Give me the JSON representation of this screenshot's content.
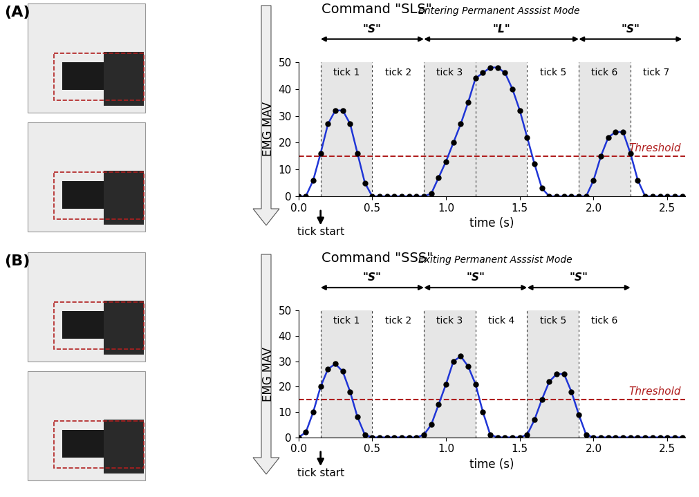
{
  "chart_data": [
    {
      "type": "line",
      "panel_label": "(A)",
      "title": "Command \"SLS\"",
      "subtitle": "Entering Permanent Asssist Mode",
      "x_label": "time (s)",
      "y_label": "EMG MAV",
      "color": "#1f35d6",
      "marker": "o",
      "x": [
        0.0,
        0.05,
        0.1,
        0.15,
        0.2,
        0.25,
        0.3,
        0.35,
        0.4,
        0.45,
        0.5,
        0.55,
        0.6,
        0.65,
        0.7,
        0.75,
        0.8,
        0.85,
        0.9,
        0.95,
        1.0,
        1.05,
        1.1,
        1.15,
        1.2,
        1.25,
        1.3,
        1.35,
        1.4,
        1.45,
        1.5,
        1.55,
        1.6,
        1.65,
        1.7,
        1.75,
        1.8,
        1.85,
        1.9,
        1.95,
        2.0,
        2.05,
        2.1,
        2.15,
        2.2,
        2.25,
        2.3,
        2.35,
        2.4,
        2.45,
        2.5,
        2.55,
        2.6
      ],
      "values": [
        0,
        0,
        6,
        16,
        27,
        32,
        32,
        27,
        16,
        5,
        0,
        0,
        0,
        0,
        0,
        0,
        0,
        0,
        1,
        7,
        13,
        20,
        27,
        35,
        44,
        46,
        48,
        48,
        46,
        40,
        32,
        22,
        12,
        3,
        0,
        0,
        0,
        0,
        0,
        0,
        6,
        15,
        22,
        24,
        24,
        16,
        6,
        0,
        0,
        0,
        0,
        0,
        0
      ],
      "xlim": [
        0,
        2.62
      ],
      "xticks": [
        {
          "value": 0,
          "label": "0.0"
        },
        {
          "value": 0.5,
          "label": "0.5"
        },
        {
          "value": 1,
          "label": "1.0"
        },
        {
          "value": 1.5,
          "label": "1.5"
        },
        {
          "value": 2,
          "label": "2.0"
        },
        {
          "value": 2.5,
          "label": "2.5"
        }
      ],
      "ylim": [
        0,
        50
      ],
      "yticks": [
        0,
        10,
        20,
        30,
        40,
        50
      ],
      "threshold": {
        "value": 15,
        "label": "Threshold",
        "color": "#b01e1e"
      },
      "shaded_spans": [
        [
          0.15,
          0.5
        ],
        [
          0.85,
          1.55
        ],
        [
          1.9,
          2.25
        ]
      ],
      "tick_regions": [
        {
          "start": 0.15,
          "end": 0.5,
          "label": "tick 1"
        },
        {
          "start": 0.5,
          "end": 0.85,
          "label": "tick 2"
        },
        {
          "start": 0.85,
          "end": 1.2,
          "label": "tick 3"
        },
        {
          "start": 1.2,
          "end": 1.55,
          "label": null
        },
        {
          "start": 1.55,
          "end": 1.9,
          "label": "tick 5"
        },
        {
          "start": 1.9,
          "end": 2.25,
          "label": "tick 6"
        },
        {
          "start": 2.25,
          "end": 2.6,
          "label": "tick 7"
        }
      ],
      "segments": [
        {
          "start": 0.15,
          "end": 0.85,
          "label": "\"S\""
        },
        {
          "start": 0.85,
          "end": 1.9,
          "label": "\"L\""
        },
        {
          "start": 1.9,
          "end": 2.6,
          "label": "\"S\""
        }
      ],
      "annotations": [
        {
          "x": 0.15,
          "text": "tick start"
        }
      ]
    },
    {
      "type": "line",
      "panel_label": "(B)",
      "title": "Command \"SSS\"",
      "subtitle": "Exiting Permanent Asssist Mode",
      "x_label": "time (s)",
      "y_label": "EMG MAV",
      "color": "#1f35d6",
      "marker": "o",
      "x": [
        0.0,
        0.05,
        0.1,
        0.15,
        0.2,
        0.25,
        0.3,
        0.35,
        0.4,
        0.45,
        0.5,
        0.55,
        0.6,
        0.65,
        0.7,
        0.75,
        0.8,
        0.85,
        0.9,
        0.95,
        1.0,
        1.05,
        1.1,
        1.15,
        1.2,
        1.25,
        1.3,
        1.35,
        1.4,
        1.45,
        1.5,
        1.55,
        1.6,
        1.65,
        1.7,
        1.75,
        1.8,
        1.85,
        1.9,
        1.95,
        2.0,
        2.05,
        2.1,
        2.15,
        2.2,
        2.25,
        2.3,
        2.35,
        2.4,
        2.45,
        2.5,
        2.55,
        2.6
      ],
      "values": [
        0,
        2,
        10,
        20,
        27,
        29,
        26,
        18,
        8,
        1,
        0,
        0,
        0,
        0,
        0,
        0,
        0,
        1,
        5,
        13,
        21,
        30,
        32,
        28,
        21,
        10,
        1,
        0,
        0,
        0,
        0,
        1,
        7,
        15,
        22,
        25,
        25,
        18,
        9,
        1,
        0,
        0,
        0,
        0,
        0,
        0,
        0,
        0,
        0,
        0,
        0,
        0,
        0
      ],
      "xlim": [
        0,
        2.62
      ],
      "xticks": [
        {
          "value": 0,
          "label": "0.0"
        },
        {
          "value": 0.5,
          "label": "0.5"
        },
        {
          "value": 1,
          "label": "1.0"
        },
        {
          "value": 1.5,
          "label": "1.5"
        },
        {
          "value": 2,
          "label": "2.0"
        },
        {
          "value": 2.5,
          "label": "2.5"
        }
      ],
      "ylim": [
        0,
        50
      ],
      "yticks": [
        0,
        10,
        20,
        30,
        40,
        50
      ],
      "threshold": {
        "value": 15,
        "label": "Threshold",
        "color": "#b01e1e"
      },
      "shaded_spans": [
        [
          0.15,
          0.5
        ],
        [
          0.85,
          1.2
        ],
        [
          1.55,
          1.9
        ]
      ],
      "tick_regions": [
        {
          "start": 0.15,
          "end": 0.5,
          "label": "tick 1"
        },
        {
          "start": 0.5,
          "end": 0.85,
          "label": "tick 2"
        },
        {
          "start": 0.85,
          "end": 1.2,
          "label": "tick 3"
        },
        {
          "start": 1.2,
          "end": 1.55,
          "label": "tick 4"
        },
        {
          "start": 1.55,
          "end": 1.9,
          "label": "tick 5"
        },
        {
          "start": 1.9,
          "end": 2.25,
          "label": "tick 6"
        }
      ],
      "segments": [
        {
          "start": 0.15,
          "end": 0.85,
          "label": "\"S\""
        },
        {
          "start": 0.85,
          "end": 1.55,
          "label": "\"S\""
        },
        {
          "start": 1.55,
          "end": 2.25,
          "label": "\"S\""
        }
      ],
      "annotations": [
        {
          "x": 0.15,
          "text": "tick start"
        }
      ]
    }
  ]
}
